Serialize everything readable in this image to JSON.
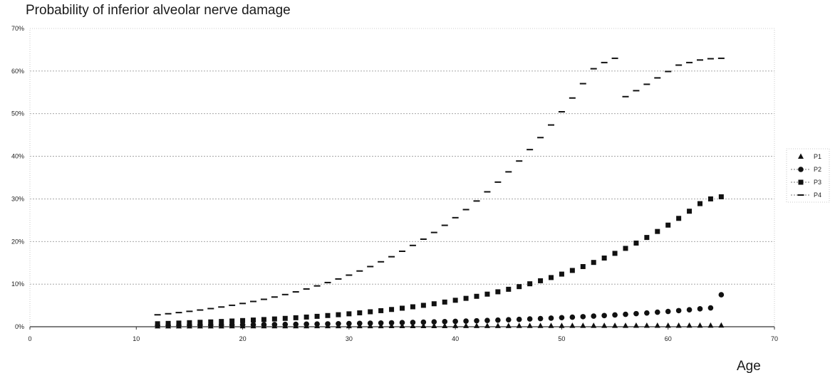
{
  "chart_data": {
    "type": "scatter",
    "title": "Probability of inferior alveolar nerve damage",
    "xlabel": "Age",
    "ylabel": "",
    "xlim": [
      0,
      70
    ],
    "ylim": [
      0,
      70
    ],
    "x_ticks": [
      "0",
      "10",
      "20",
      "30",
      "40",
      "50",
      "60",
      "70"
    ],
    "y_ticks": [
      "0%",
      "10%",
      "20%",
      "30%",
      "40%",
      "50%",
      "60%",
      "70%"
    ],
    "grid": true,
    "legend_position": "right",
    "x": [
      12,
      13,
      14,
      15,
      16,
      17,
      18,
      19,
      20,
      21,
      22,
      23,
      24,
      25,
      26,
      27,
      28,
      29,
      30,
      31,
      32,
      33,
      34,
      35,
      36,
      37,
      38,
      39,
      40,
      41,
      42,
      43,
      44,
      45,
      46,
      47,
      48,
      49,
      50,
      51,
      52,
      53,
      54,
      55,
      56,
      57,
      58,
      59,
      60,
      61,
      62,
      63,
      64,
      65
    ],
    "series": [
      {
        "name": "P1",
        "marker": "triangle",
        "values": [
          0.1,
          0.1,
          0.1,
          0.11,
          0.11,
          0.11,
          0.11,
          0.12,
          0.12,
          0.12,
          0.12,
          0.13,
          0.13,
          0.13,
          0.13,
          0.14,
          0.14,
          0.14,
          0.14,
          0.15,
          0.15,
          0.15,
          0.16,
          0.16,
          0.16,
          0.17,
          0.17,
          0.17,
          0.18,
          0.18,
          0.18,
          0.19,
          0.19,
          0.19,
          0.2,
          0.2,
          0.21,
          0.21,
          0.21,
          0.22,
          0.22,
          0.23,
          0.23,
          0.24,
          0.24,
          0.25,
          0.25,
          0.25,
          0.26,
          0.26,
          0.27,
          0.27,
          0.28,
          0.3
        ]
      },
      {
        "name": "P2",
        "marker": "circle",
        "values": [
          0.3,
          0.32,
          0.33,
          0.35,
          0.37,
          0.38,
          0.4,
          0.42,
          0.45,
          0.47,
          0.49,
          0.52,
          0.55,
          0.58,
          0.61,
          0.64,
          0.67,
          0.71,
          0.75,
          0.79,
          0.83,
          0.87,
          0.92,
          0.97,
          1.02,
          1.08,
          1.14,
          1.2,
          1.26,
          1.33,
          1.4,
          1.47,
          1.55,
          1.64,
          1.72,
          1.82,
          1.91,
          2.02,
          2.13,
          2.24,
          2.36,
          2.49,
          2.62,
          2.76,
          2.91,
          3.07,
          3.23,
          3.41,
          3.59,
          3.78,
          3.98,
          4.2,
          4.42,
          7.5
        ]
      },
      {
        "name": "P3",
        "marker": "square",
        "values": [
          0.7,
          0.78,
          0.86,
          0.95,
          1.04,
          1.13,
          1.23,
          1.34,
          1.45,
          1.57,
          1.69,
          1.82,
          1.96,
          2.11,
          2.27,
          2.44,
          2.63,
          2.82,
          3.03,
          3.26,
          3.51,
          3.77,
          4.05,
          4.35,
          4.68,
          5.02,
          5.39,
          5.79,
          6.21,
          6.66,
          7.14,
          7.65,
          8.2,
          8.79,
          9.41,
          10.08,
          10.79,
          11.54,
          12.35,
          13.21,
          14.12,
          15.09,
          16.12,
          17.22,
          18.39,
          19.63,
          20.95,
          22.36,
          23.85,
          25.43,
          27.11,
          28.89,
          30.0,
          30.5
        ]
      },
      {
        "name": "P4",
        "marker": "dash",
        "values": [
          2.8,
          3.05,
          3.32,
          3.61,
          3.92,
          4.26,
          4.63,
          5.03,
          5.46,
          5.93,
          6.43,
          6.97,
          7.55,
          8.18,
          8.86,
          9.58,
          10.37,
          11.21,
          12.11,
          13.08,
          14.12,
          15.24,
          16.43,
          17.71,
          19.08,
          20.55,
          22.12,
          23.8,
          25.59,
          27.49,
          29.51,
          31.66,
          33.94,
          36.35,
          38.89,
          41.57,
          44.39,
          47.35,
          50.45,
          53.68,
          57.05,
          60.55,
          62.0,
          63.0,
          54.0,
          55.4,
          56.9,
          58.4,
          59.9,
          61.4,
          62.0,
          62.6,
          62.9,
          63.0
        ]
      }
    ]
  }
}
